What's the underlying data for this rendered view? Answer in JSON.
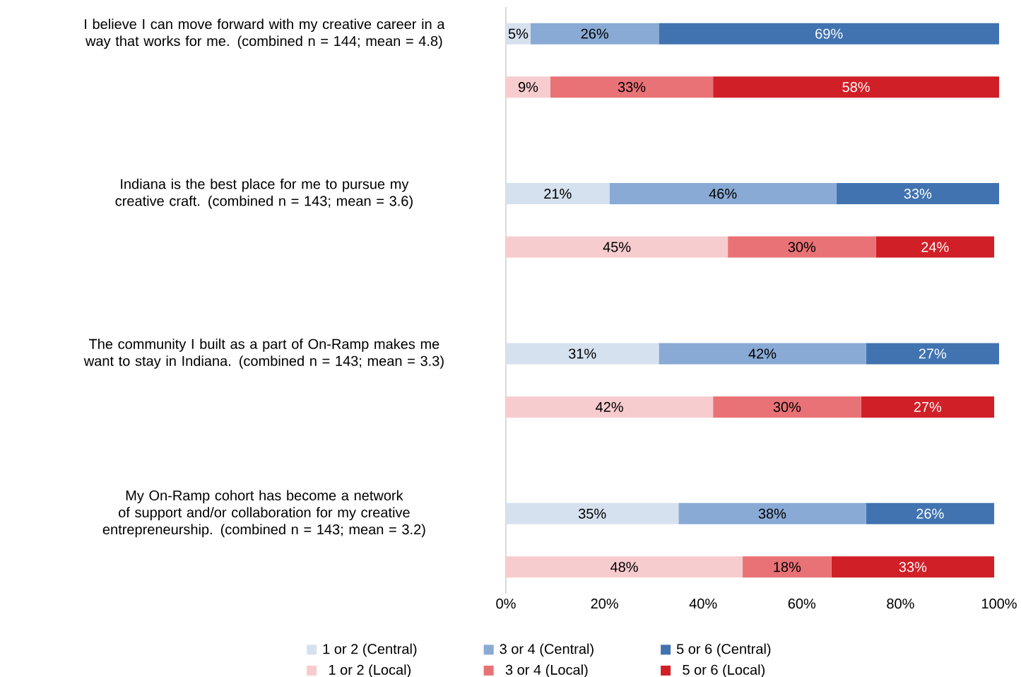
{
  "chart_data": {
    "type": "bar",
    "orientation": "horizontal",
    "stacked": true,
    "categories": [
      "I believe I can move forward with my creative career in a way that works for me. (combined n = 144; mean = 4.8)",
      null,
      null,
      "Indiana is the best place for me to pursue my creative craft. (combined n = 143; mean = 3.6)",
      null,
      null,
      "The community I built as a part of On-Ramp makes me want to stay in Indiana. (combined n = 143; mean = 3.3)",
      null,
      null,
      "My On-Ramp cohort has become a network of support and/or collaboration for my creative entrepreneurship. (combined n = 143; mean = 3.2)",
      null
    ],
    "series": [
      {
        "name": "1 or 2 (Central)",
        "color": "#d6e1ef",
        "values": [
          5,
          null,
          null,
          21,
          null,
          null,
          31,
          null,
          null,
          35,
          null
        ],
        "value_labels": [
          "5%",
          null,
          null,
          "21%",
          null,
          null,
          "31%",
          null,
          null,
          "35%",
          null
        ]
      },
      {
        "name": "3 or 4 (Central)",
        "color": "#89aad4",
        "values": [
          26,
          null,
          null,
          46,
          null,
          null,
          42,
          null,
          null,
          38,
          null
        ],
        "value_labels": [
          "26%",
          null,
          null,
          "46%",
          null,
          null,
          "42%",
          null,
          null,
          "38%",
          null
        ]
      },
      {
        "name": "5 or 6 (Central)",
        "color": "#4173b0",
        "values": [
          69,
          null,
          null,
          33,
          null,
          null,
          27,
          null,
          null,
          26,
          null
        ],
        "value_labels": [
          "69%",
          null,
          null,
          "33%",
          null,
          null,
          "27%",
          null,
          null,
          "26%",
          null
        ]
      },
      {
        "name": "1 or 2 (Local)",
        "color": "#f7ccce",
        "values": [
          null,
          9,
          null,
          null,
          45,
          null,
          null,
          42,
          null,
          null,
          48
        ],
        "value_labels": [
          null,
          "9%",
          null,
          null,
          "45%",
          null,
          null,
          "42%",
          null,
          null,
          "48%"
        ]
      },
      {
        "name": "3 or 4 (Local)",
        "color": "#e97277",
        "values": [
          null,
          33,
          null,
          null,
          30,
          null,
          null,
          30,
          null,
          null,
          18
        ],
        "value_labels": [
          null,
          "33%",
          null,
          null,
          "30%",
          null,
          null,
          "30%",
          null,
          null,
          "18%"
        ]
      },
      {
        "name": "5 or 6 (Local)",
        "color": "#d01f27",
        "values": [
          null,
          58,
          null,
          null,
          24,
          null,
          null,
          27,
          null,
          null,
          33
        ],
        "value_labels": [
          null,
          "58%",
          null,
          null,
          "24%",
          null,
          null,
          "27%",
          null,
          null,
          "33%"
        ]
      }
    ],
    "xlim": [
      0,
      100
    ],
    "xticks": [
      {
        "value": 0,
        "label": "0%"
      },
      {
        "value": 20,
        "label": "20%"
      },
      {
        "value": 40,
        "label": "40%"
      },
      {
        "value": 60,
        "label": "60%"
      },
      {
        "value": 80,
        "label": "80%"
      },
      {
        "value": 100,
        "label": "100%"
      }
    ],
    "legend": "bottom",
    "grid": false
  }
}
